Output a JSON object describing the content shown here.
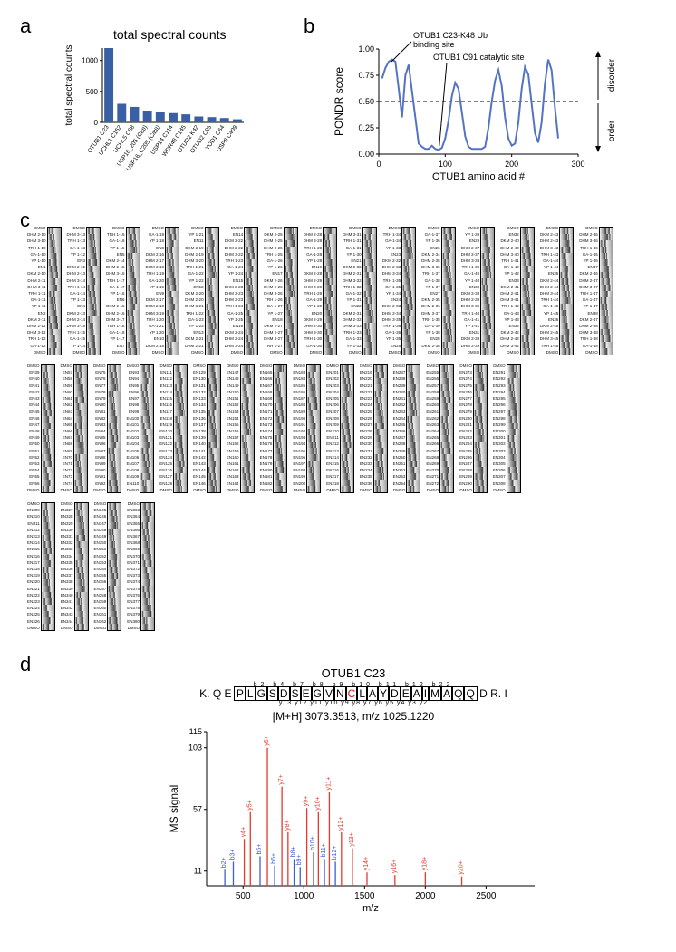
{
  "panel_labels": {
    "a": "a",
    "b": "b",
    "c": "c",
    "d": "d"
  },
  "panel_a": {
    "title": "total spectral counts",
    "ylabel": "total spectral counts",
    "categories": [
      "OTUB1 C23",
      "UCHL1 C152",
      "UCHL5 C88",
      "USP16_205 (CatI)",
      "USP16_C205 (CatII)",
      "USP14 C114",
      "WDR48 C145",
      "OTUD2 K42",
      "OTUD2 C95",
      "YOD1 C64",
      "USP8 C409"
    ],
    "values": [
      1200,
      300,
      250,
      190,
      175,
      150,
      130,
      95,
      85,
      70,
      50
    ],
    "ylim": [
      0,
      1200
    ],
    "yticks": [
      0,
      500,
      1000
    ],
    "bar_color": "#3b5fa4",
    "background_color": "#ffffff",
    "title_fontsize": 14,
    "label_fontsize": 10,
    "tick_fontsize": 8
  },
  "panel_b": {
    "ylabel": "PONDR score",
    "xlabel": "OTUB1 amino acid #",
    "right_top_label": "disorder",
    "right_bottom_label": "order",
    "annotation_1": "OTUB1 C23-K48 Ub\nbinding site",
    "annotation_2": "OTUB1 C91 catalytic site",
    "xlim": [
      0,
      300
    ],
    "ylim": [
      0,
      1
    ],
    "xticks": [
      0,
      100,
      200,
      300
    ],
    "yticks": [
      "0.00",
      "0.25",
      "0.50",
      "0.75",
      "1.00"
    ],
    "threshold": 0.5,
    "line_color": "#5573c4",
    "line_width": 2,
    "points": [
      [
        5,
        0.72
      ],
      [
        10,
        0.82
      ],
      [
        15,
        0.88
      ],
      [
        20,
        0.9
      ],
      [
        25,
        0.88
      ],
      [
        30,
        0.62
      ],
      [
        35,
        0.35
      ],
      [
        40,
        0.75
      ],
      [
        45,
        0.85
      ],
      [
        50,
        0.6
      ],
      [
        55,
        0.35
      ],
      [
        60,
        0.1
      ],
      [
        65,
        0.07
      ],
      [
        70,
        0.05
      ],
      [
        75,
        0.05
      ],
      [
        80,
        0.08
      ],
      [
        85,
        0.05
      ],
      [
        90,
        0.04
      ],
      [
        95,
        0.06
      ],
      [
        100,
        0.15
      ],
      [
        105,
        0.32
      ],
      [
        110,
        0.55
      ],
      [
        115,
        0.68
      ],
      [
        120,
        0.62
      ],
      [
        125,
        0.4
      ],
      [
        130,
        0.17
      ],
      [
        135,
        0.07
      ],
      [
        140,
        0.05
      ],
      [
        145,
        0.05
      ],
      [
        150,
        0.05
      ],
      [
        155,
        0.05
      ],
      [
        160,
        0.07
      ],
      [
        165,
        0.25
      ],
      [
        170,
        0.5
      ],
      [
        175,
        0.7
      ],
      [
        180,
        0.8
      ],
      [
        185,
        0.65
      ],
      [
        190,
        0.35
      ],
      [
        195,
        0.15
      ],
      [
        200,
        0.08
      ],
      [
        205,
        0.1
      ],
      [
        210,
        0.3
      ],
      [
        215,
        0.62
      ],
      [
        220,
        0.83
      ],
      [
        225,
        0.76
      ],
      [
        230,
        0.48
      ],
      [
        235,
        0.2
      ],
      [
        240,
        0.11
      ],
      [
        245,
        0.3
      ],
      [
        250,
        0.67
      ],
      [
        255,
        0.9
      ],
      [
        260,
        0.8
      ],
      [
        265,
        0.45
      ],
      [
        270,
        0.15
      ]
    ]
  },
  "panel_c": {
    "rows": [
      {
        "cols": 15,
        "lanes": 20,
        "prefix_pool": [
          "DMSO",
          "DKM 2-",
          "DHM 2-",
          "DHM 3-",
          "TRH 1-",
          "GA-1-",
          "YP 1-",
          "EN"
        ]
      },
      {
        "cols": 15,
        "lanes": 20,
        "prefix_pool": [
          "DMSO",
          "EN"
        ]
      },
      {
        "cols": 4,
        "lanes": 20,
        "prefix_pool": [
          "DMSO",
          "EN"
        ]
      }
    ]
  },
  "panel_d": {
    "title": "OTUB1 C23",
    "sequence_pre": "K. Q E",
    "sequence_boxed": [
      "P",
      "L",
      "G",
      "S",
      "D",
      "S",
      "E",
      "G",
      "V",
      "N",
      "C",
      "L",
      "A",
      "Y",
      "D",
      "E",
      "A",
      "I",
      "M",
      "A",
      "Q",
      "Q"
    ],
    "boxed_red_index": 10,
    "sequence_post": "D R. I",
    "b_ions_top": [
      "b2",
      "b4",
      "b7",
      "b8",
      "b9",
      "b10",
      "b11",
      "b12",
      "b22"
    ],
    "y_ions_bottom": [
      "y13",
      "y12",
      "y11",
      "y10",
      "y9",
      "y8",
      "y7",
      "y6",
      "y5",
      "y4",
      "y3",
      "y2"
    ],
    "mass_line": "[M+H] 3073.3513, m/z 1025.1220",
    "yticks": [
      11,
      57,
      103,
      115
    ],
    "ylabel": "MS signal",
    "xlabel": "m/z",
    "xticks": [
      500,
      1000,
      1500,
      2000,
      2500
    ],
    "xlim": [
      200,
      2900
    ],
    "ylim": [
      0,
      115
    ],
    "b_color": "#3b5fd6",
    "y_color": "#e23b2c",
    "peaks": [
      {
        "mz": 350,
        "h": 12,
        "c": "b",
        "l": "b2+"
      },
      {
        "mz": 420,
        "h": 18,
        "c": "b",
        "l": "b3+"
      },
      {
        "mz": 510,
        "h": 35,
        "c": "y",
        "l": "y4+"
      },
      {
        "mz": 560,
        "h": 55,
        "c": "y",
        "l": "y5+"
      },
      {
        "mz": 640,
        "h": 22,
        "c": "b",
        "l": "b5+"
      },
      {
        "mz": 700,
        "h": 103,
        "c": "y",
        "l": "y6+"
      },
      {
        "mz": 760,
        "h": 15,
        "c": "b",
        "l": "b6+"
      },
      {
        "mz": 820,
        "h": 74,
        "c": "y",
        "l": "y7+"
      },
      {
        "mz": 870,
        "h": 40,
        "c": "y",
        "l": "y8+"
      },
      {
        "mz": 920,
        "h": 20,
        "c": "b",
        "l": "b8+"
      },
      {
        "mz": 970,
        "h": 14,
        "c": "b",
        "l": "b9+"
      },
      {
        "mz": 1025,
        "h": 58,
        "c": "y",
        "l": "y9+"
      },
      {
        "mz": 1080,
        "h": 25,
        "c": "b",
        "l": "b10+"
      },
      {
        "mz": 1120,
        "h": 55,
        "c": "y",
        "l": "y10+"
      },
      {
        "mz": 1170,
        "h": 20,
        "c": "b",
        "l": "b11+"
      },
      {
        "mz": 1210,
        "h": 70,
        "c": "y",
        "l": "y11+"
      },
      {
        "mz": 1260,
        "h": 18,
        "c": "b",
        "l": "b12+"
      },
      {
        "mz": 1310,
        "h": 40,
        "c": "y",
        "l": "y12+"
      },
      {
        "mz": 1400,
        "h": 28,
        "c": "y",
        "l": "y13+"
      },
      {
        "mz": 1520,
        "h": 10,
        "c": "y",
        "l": "y14+"
      },
      {
        "mz": 1750,
        "h": 8,
        "c": "y",
        "l": "y16+"
      },
      {
        "mz": 2000,
        "h": 10,
        "c": "y",
        "l": "y18+"
      },
      {
        "mz": 2300,
        "h": 7,
        "c": "y",
        "l": "y20+"
      }
    ]
  }
}
